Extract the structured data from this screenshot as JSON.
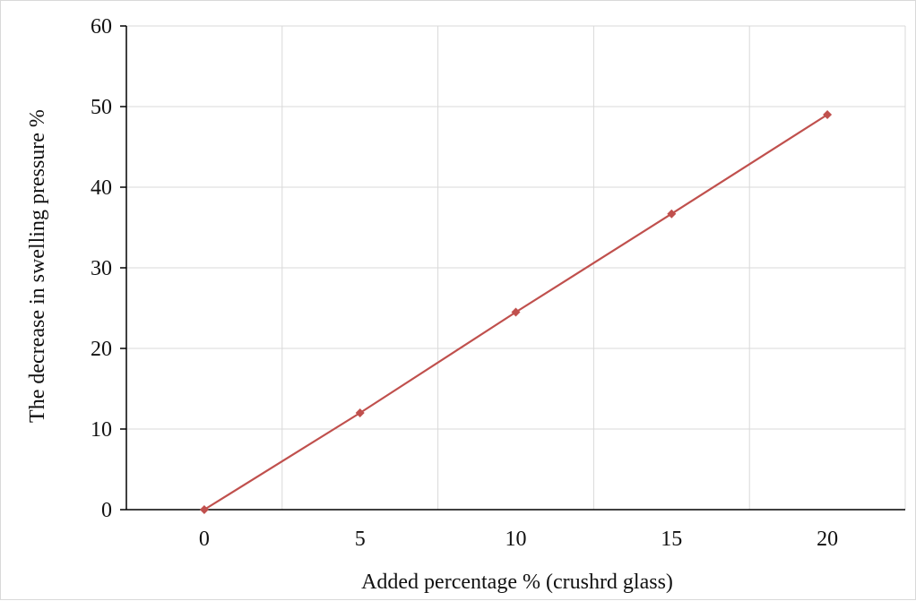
{
  "chart_data": {
    "type": "line",
    "title": "",
    "xlabel": "Added percentage %  (crushrd glass)",
    "ylabel": "The decrease in swelling pressure %",
    "x": [
      0,
      5,
      10,
      15,
      20
    ],
    "series": [
      {
        "values": [
          0,
          12,
          24.5,
          36.7,
          49
        ]
      }
    ],
    "xlim": [
      -2.5,
      22.5
    ],
    "ylim": [
      0,
      60
    ],
    "xticks": [
      0,
      5,
      10,
      15,
      20
    ],
    "xtick_labels": [
      "0",
      "5",
      "10",
      "15",
      "20"
    ],
    "yticks": [
      0,
      10,
      20,
      30,
      40,
      50,
      60
    ],
    "ytick_labels": [
      "0",
      "10",
      "20",
      "30",
      "40",
      "50",
      "60"
    ],
    "x_gridlines": [
      -2.5,
      2.5,
      7.5,
      12.5,
      17.5,
      22.5
    ],
    "grid": true,
    "legend": "none",
    "colors": {
      "series": "#c0504d",
      "grid": "#d9d9d9",
      "axis": "#000000"
    }
  }
}
